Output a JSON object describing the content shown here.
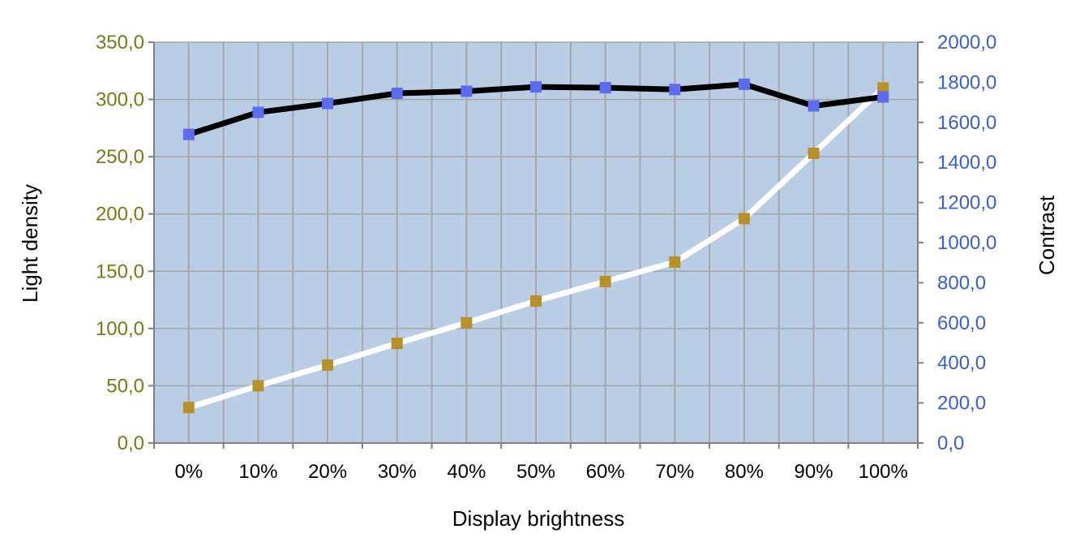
{
  "chart_data": {
    "type": "line",
    "xlabel": "Display brightness",
    "ylabel": "Light density",
    "y2label": "Contrast",
    "categories": [
      "0%",
      "10%",
      "20%",
      "30%",
      "40%",
      "50%",
      "60%",
      "70%",
      "80%",
      "90%",
      "100%"
    ],
    "ylim": [
      0,
      350
    ],
    "y2lim": [
      0,
      2000
    ],
    "yticks": [
      "0,0",
      "50,0",
      "100,0",
      "150,0",
      "200,0",
      "250,0",
      "300,0",
      "350,0"
    ],
    "y2ticks": [
      "0,0",
      "200,0",
      "400,0",
      "600,0",
      "800,0",
      "1000,0",
      "1200,0",
      "1400,0",
      "1600,0",
      "1800,0",
      "2000,0"
    ],
    "grid": true,
    "legend": "none",
    "series": [
      {
        "axis": "left",
        "line_color": "#ffffff",
        "marker_color": "#b8902a",
        "values": [
          31,
          50,
          68,
          87,
          105,
          124,
          141,
          158,
          196,
          253,
          310
        ]
      },
      {
        "axis": "right",
        "line_color": "#000000",
        "marker_color": "#5b6cf0",
        "values": [
          1540,
          1650,
          1694,
          1745,
          1755,
          1777,
          1773,
          1764,
          1790,
          1682,
          1727
        ]
      }
    ],
    "colors": {
      "plot_background": "#b9cde4",
      "gridline": "#a6a6a6",
      "left_tick_text": "#7a7a14",
      "right_tick_text": "#3a60d0"
    }
  }
}
